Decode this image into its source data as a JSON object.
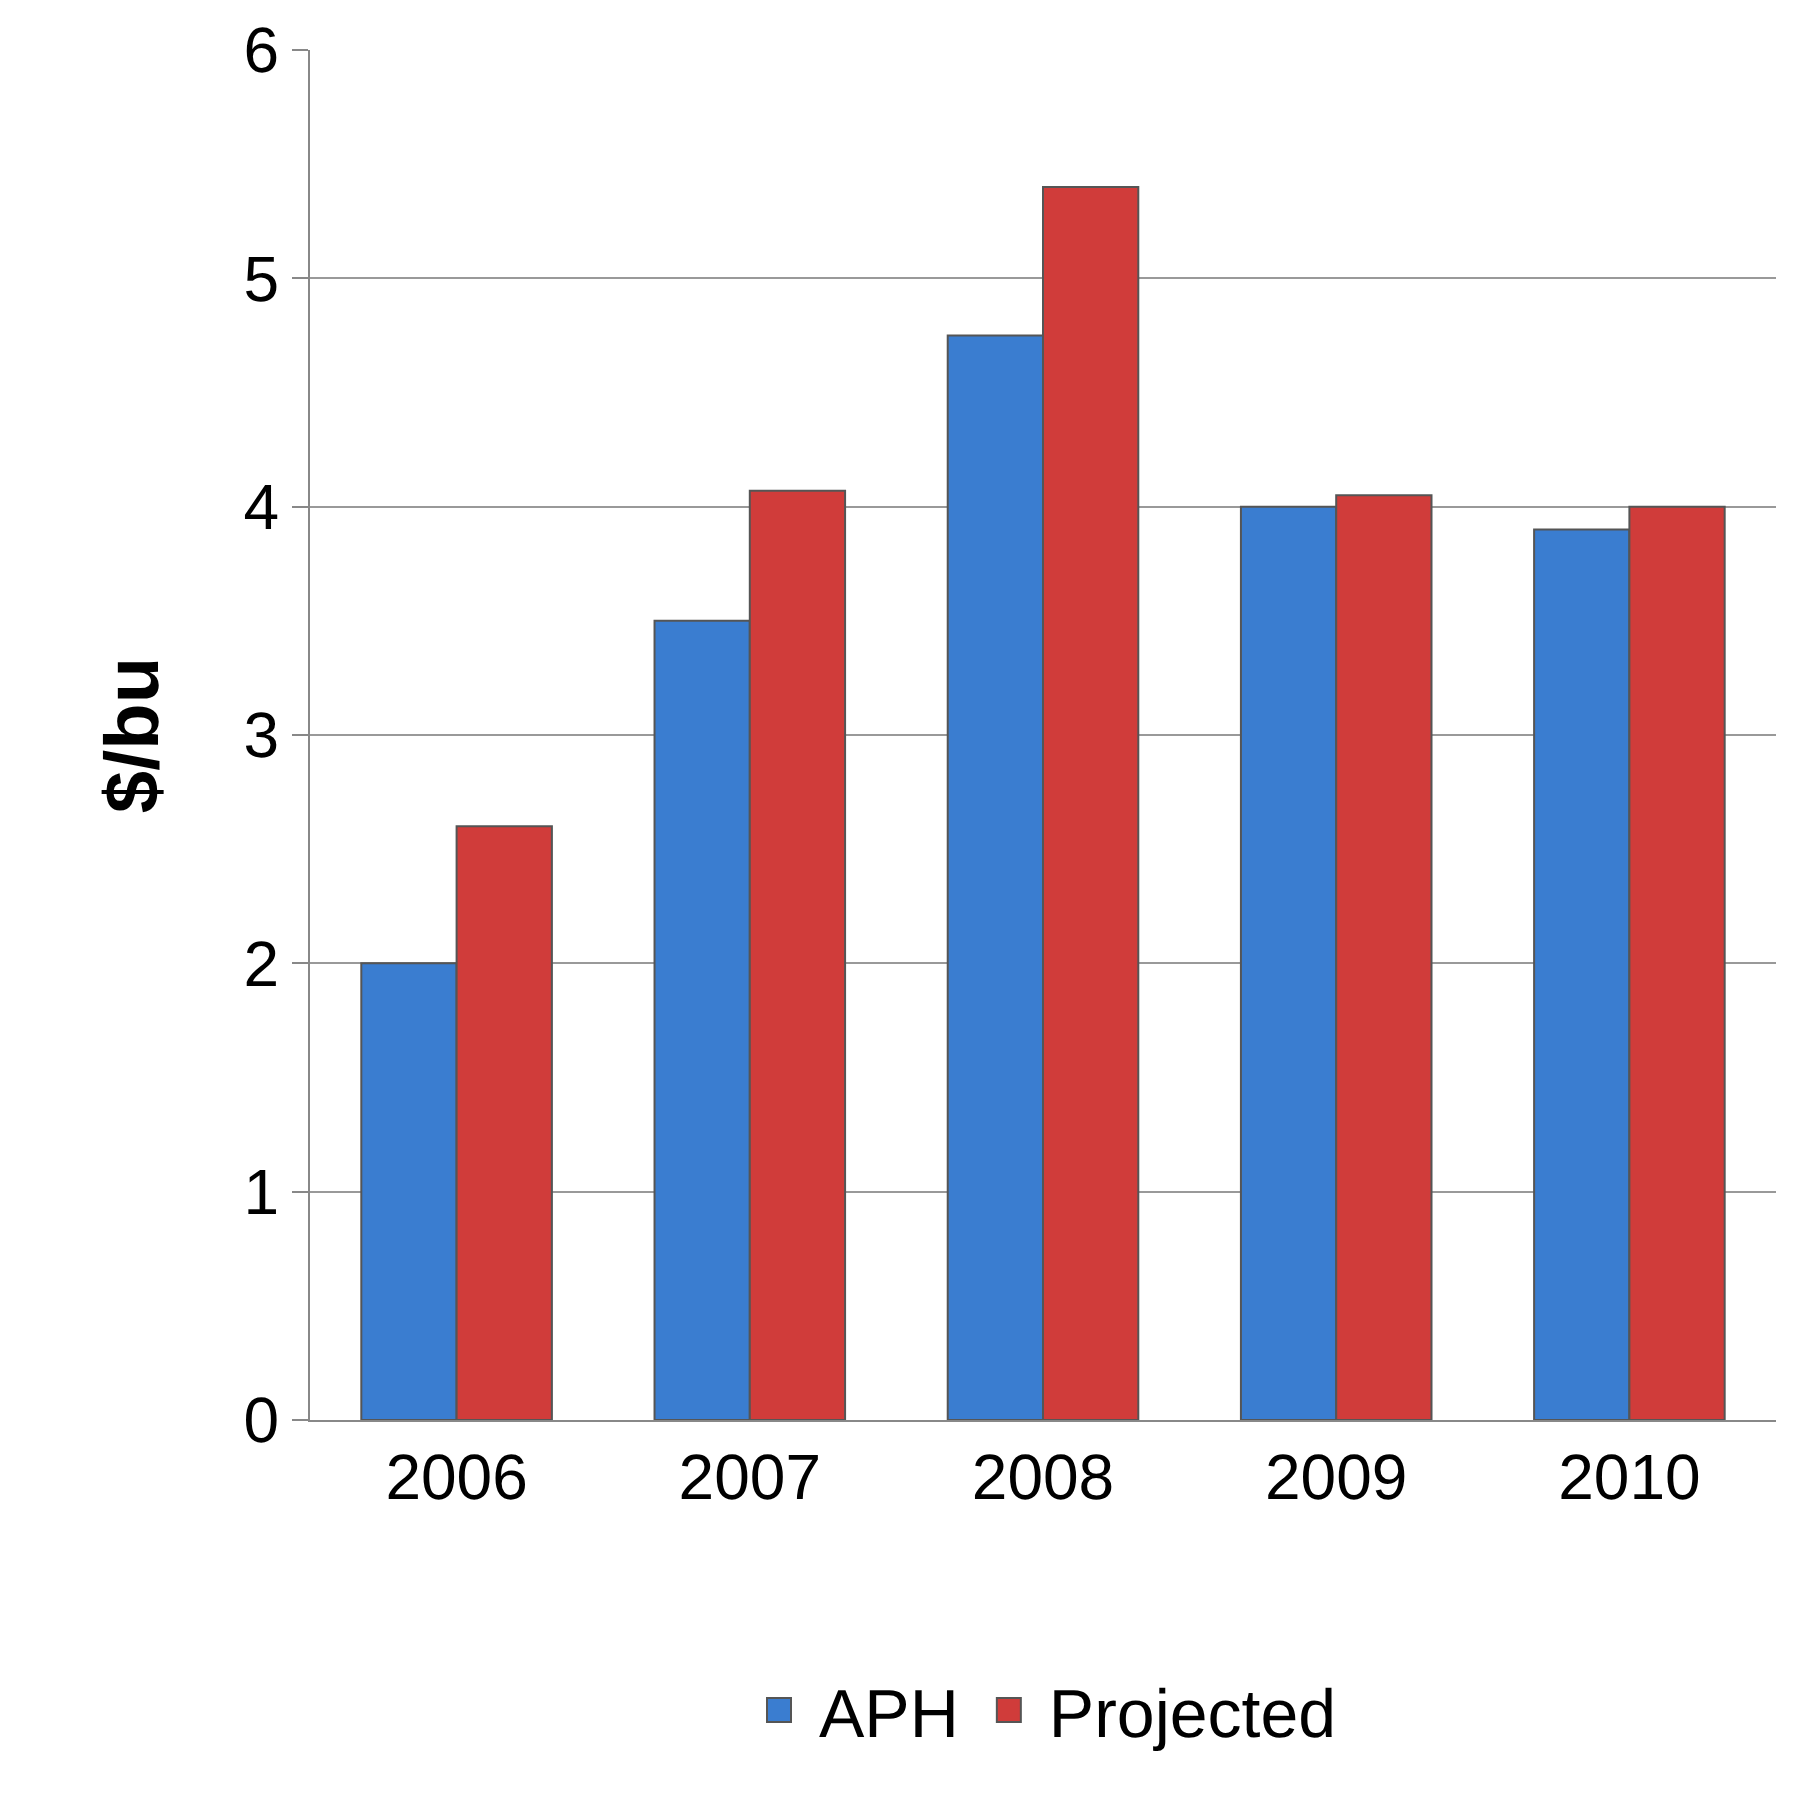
{
  "chart_data": {
    "type": "bar",
    "ylabel": "$/bu",
    "categories": [
      "2006",
      "2007",
      "2008",
      "2009",
      "2010"
    ],
    "series": [
      {
        "name": "APH",
        "color": "#3a7dd0",
        "values": [
          2.0,
          3.5,
          4.75,
          4.0,
          3.9
        ]
      },
      {
        "name": "Projected",
        "color": "#d03c3a",
        "values": [
          2.6,
          4.07,
          5.4,
          4.05,
          4.0
        ]
      }
    ],
    "ylim": [
      0,
      6
    ],
    "yticks": [
      0,
      1,
      2,
      3,
      4,
      5,
      6
    ],
    "grid": "y",
    "legend": "bottom"
  }
}
